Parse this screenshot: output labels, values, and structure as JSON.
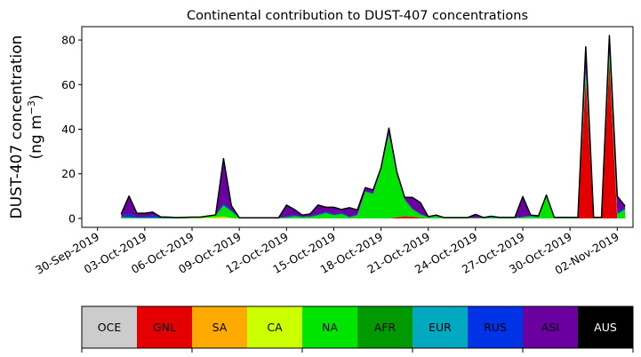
{
  "chart_data": {
    "type": "area",
    "stacked": true,
    "title": "Continental contribution to DUST-407 concentrations",
    "ylabel_line1": "DUST-407 concentration",
    "ylabel_line2_prefix": "(ng m",
    "ylabel_line2_sup": "−3",
    "ylabel_line2_suffix": ")",
    "ylim": [
      -4,
      86
    ],
    "y_ticks": [
      0,
      20,
      40,
      60,
      80
    ],
    "x_ticks": [
      "30-Sep-2019",
      "03-Oct-2019",
      "06-Oct-2019",
      "09-Oct-2019",
      "12-Oct-2019",
      "15-Oct-2019",
      "18-Oct-2019",
      "21-Oct-2019",
      "24-Oct-2019",
      "27-Oct-2019",
      "30-Oct-2019",
      "02-Nov-2019"
    ],
    "x_range": [
      "2019-09-29",
      "2019-11-03"
    ],
    "dates": [
      "2019-10-01T12",
      "2019-10-02T00",
      "2019-10-02T12",
      "2019-10-03T00",
      "2019-10-03T12",
      "2019-10-04T00",
      "2019-10-04T12",
      "2019-10-05T00",
      "2019-10-05T12",
      "2019-10-06T00",
      "2019-10-06T12",
      "2019-10-07T00",
      "2019-10-07T12",
      "2019-10-08T00",
      "2019-10-08T12",
      "2019-10-09T00",
      "2019-10-09T12",
      "2019-10-10T00",
      "2019-10-10T12",
      "2019-10-11T00",
      "2019-10-11T12",
      "2019-10-12T00",
      "2019-10-12T12",
      "2019-10-13T00",
      "2019-10-13T12",
      "2019-10-14T00",
      "2019-10-14T12",
      "2019-10-15T00",
      "2019-10-15T12",
      "2019-10-16T00",
      "2019-10-16T12",
      "2019-10-17T00",
      "2019-10-17T12",
      "2019-10-18T00",
      "2019-10-18T12",
      "2019-10-19T00",
      "2019-10-19T12",
      "2019-10-20T00",
      "2019-10-20T12",
      "2019-10-21T00",
      "2019-10-21T12",
      "2019-10-22T00",
      "2019-10-22T12",
      "2019-10-23T00",
      "2019-10-23T12",
      "2019-10-24T00",
      "2019-10-24T12",
      "2019-10-25T00",
      "2019-10-25T12",
      "2019-10-26T00",
      "2019-10-26T12",
      "2019-10-27T00",
      "2019-10-27T12",
      "2019-10-28T00",
      "2019-10-28T12",
      "2019-10-29T00",
      "2019-10-29T12",
      "2019-10-30T00",
      "2019-10-30T12",
      "2019-10-31T00",
      "2019-10-31T12",
      "2019-11-01T00",
      "2019-11-01T12",
      "2019-11-02T00",
      "2019-11-02T12"
    ],
    "series": [
      {
        "name": "OCE",
        "color": "#cccccc",
        "values": [
          0,
          0,
          0,
          0,
          0,
          0,
          0,
          0,
          0,
          0,
          0,
          0,
          0,
          0,
          0,
          0,
          0,
          0,
          0,
          0,
          0,
          0,
          0,
          0,
          0,
          0,
          0,
          0,
          0,
          0,
          0,
          0,
          0,
          0,
          0,
          0,
          0,
          0,
          0,
          0,
          0,
          0,
          0,
          0,
          0,
          0,
          0,
          0,
          0,
          0,
          0,
          0,
          0,
          0,
          0,
          0,
          0,
          0,
          0,
          0,
          0,
          0,
          0,
          0,
          0
        ]
      },
      {
        "name": "GNL",
        "color": "#e50000",
        "values": [
          0,
          0,
          0,
          0,
          0,
          0,
          0,
          0,
          0,
          0,
          0,
          0,
          0,
          0,
          0,
          0,
          0,
          0,
          0,
          0,
          0,
          0,
          0,
          0,
          0,
          0,
          0,
          0,
          0,
          0,
          0,
          0,
          0,
          0,
          0,
          0.5,
          1,
          0.8,
          0.3,
          0,
          0,
          0,
          0,
          0,
          0,
          0,
          0,
          0,
          0,
          0,
          0,
          0,
          0,
          0,
          0,
          0,
          0,
          0,
          0,
          62,
          0,
          0,
          70,
          0,
          0
        ]
      },
      {
        "name": "SA",
        "color": "#ffaa00",
        "values": [
          0,
          0,
          0,
          0,
          0,
          0,
          0,
          0,
          0,
          0,
          0,
          0.1,
          0.2,
          0.3,
          0,
          0,
          0,
          0,
          0,
          0,
          0,
          0,
          0,
          0,
          0,
          0,
          0,
          0,
          0,
          0,
          0,
          0,
          0,
          0,
          0,
          0,
          0,
          0,
          0,
          0,
          0,
          0,
          0,
          0,
          0,
          0,
          0,
          0,
          0,
          0,
          0,
          0,
          0,
          0,
          0,
          0,
          0,
          0,
          0,
          0,
          0,
          0,
          0,
          0,
          0
        ]
      },
      {
        "name": "CA",
        "color": "#ccff00",
        "values": [
          0,
          0,
          0,
          0,
          0,
          0,
          0,
          0,
          0,
          0.2,
          0.2,
          0.3,
          0.4,
          0.5,
          0.2,
          0,
          0,
          0,
          0,
          0,
          0,
          0,
          0,
          0,
          0,
          0,
          0,
          0,
          0,
          0,
          0,
          0,
          0,
          0,
          0,
          0,
          0,
          0,
          0,
          0,
          0,
          0,
          0,
          0,
          0,
          0,
          0,
          0,
          0,
          0,
          0,
          0,
          0,
          0,
          0,
          0,
          0,
          0,
          0,
          0,
          0,
          0,
          0,
          0,
          0
        ]
      },
      {
        "name": "NA",
        "color": "#00e500",
        "values": [
          0.5,
          0.5,
          0.3,
          0.3,
          0.3,
          0.2,
          0.2,
          0.2,
          0.2,
          0.3,
          0.3,
          0.5,
          0.8,
          5,
          3,
          0.2,
          0.2,
          0.2,
          0.2,
          0.2,
          0.2,
          0.5,
          1,
          0.6,
          0.7,
          1.5,
          2.5,
          1.5,
          2,
          0.5,
          1.5,
          12,
          11,
          22,
          37,
          19,
          7,
          3,
          1.5,
          0.5,
          1,
          0.2,
          0.2,
          0.2,
          0.2,
          0.2,
          0.2,
          0.5,
          0.2,
          0.2,
          0.2,
          0.5,
          1,
          0.5,
          10,
          0.2,
          0.2,
          0.2,
          0.2,
          3,
          0.2,
          0.2,
          4,
          2,
          4
        ]
      },
      {
        "name": "AFR",
        "color": "#009a00",
        "values": [
          0,
          0,
          0,
          0,
          0,
          0,
          0,
          0,
          0,
          0,
          0,
          0,
          0,
          0,
          0,
          0,
          0,
          0,
          0,
          0,
          0,
          0,
          0,
          0,
          0,
          0,
          0,
          0,
          0,
          0,
          0,
          0,
          0,
          0,
          0.5,
          0.5,
          0.5,
          0.3,
          0,
          0,
          0,
          0,
          0,
          0,
          0,
          0,
          0,
          0,
          0,
          0,
          0,
          0,
          0,
          0,
          0,
          0,
          0,
          0,
          0,
          1,
          0,
          0,
          1,
          0,
          0
        ]
      },
      {
        "name": "EUR",
        "color": "#00a8c0",
        "values": [
          0,
          0,
          0,
          0,
          0,
          0,
          0,
          0,
          0,
          0,
          0,
          0,
          0,
          0,
          0,
          0,
          0,
          0,
          0,
          0,
          0,
          0,
          0,
          0,
          0,
          0,
          0,
          0,
          0,
          0,
          0,
          0,
          0,
          0,
          0,
          0,
          0,
          0,
          0,
          0,
          0,
          0,
          0,
          0,
          0,
          0,
          0,
          0,
          0,
          0,
          0,
          0,
          0,
          0,
          0,
          0,
          0,
          0,
          0,
          0,
          0,
          0,
          0,
          0,
          0
        ]
      },
      {
        "name": "RUS",
        "color": "#0033e5",
        "values": [
          0.5,
          1.5,
          0.5,
          0.5,
          1,
          0.3,
          0.2,
          0.2,
          0.2,
          0.1,
          0.1,
          0.2,
          0.2,
          1,
          0.5,
          0.1,
          0.1,
          0.1,
          0.1,
          0.1,
          0.1,
          0.5,
          0.5,
          0.2,
          0.3,
          0.5,
          0.5,
          0.5,
          0.5,
          0.3,
          0.3,
          0.3,
          0.3,
          0.5,
          0.5,
          0.5,
          0.3,
          0.3,
          0.3,
          0.1,
          0.2,
          0.1,
          0.1,
          0.1,
          0.1,
          0.1,
          0.1,
          0.3,
          0.1,
          0.1,
          0.1,
          0.3,
          0.3,
          0.2,
          0.3,
          0.1,
          0.1,
          0.1,
          0.1,
          2,
          0.1,
          0.1,
          2,
          1,
          0.5
        ]
      },
      {
        "name": "ASI",
        "color": "#6a00a0",
        "values": [
          1,
          8,
          1.5,
          1.5,
          1.5,
          0.2,
          0.2,
          0,
          0.1,
          0,
          0,
          0,
          0,
          20,
          2,
          0,
          0,
          0,
          0,
          0,
          0,
          5,
          2.5,
          0.7,
          1,
          4,
          2,
          3,
          1.5,
          4,
          2,
          1.5,
          1.5,
          0.2,
          2.5,
          0.5,
          0.7,
          5,
          5,
          0.2,
          0.3,
          0.1,
          0.1,
          0.1,
          0.1,
          1.5,
          0.1,
          0.2,
          0.2,
          0.2,
          0.2,
          9,
          0.2,
          0.5,
          0.2,
          0.2,
          0.2,
          0.2,
          0.2,
          9,
          0.2,
          0.2,
          5,
          7,
          1
        ]
      },
      {
        "name": "AUS",
        "color": "#000000",
        "values": [
          0,
          0,
          0,
          0,
          0,
          0,
          0,
          0,
          0,
          0,
          0,
          0,
          0,
          0,
          0,
          0,
          0,
          0,
          0,
          0,
          0,
          0,
          0,
          0,
          0,
          0,
          0,
          0,
          0,
          0,
          0,
          0,
          0,
          0,
          0,
          0,
          0,
          0,
          0,
          0,
          0,
          0,
          0,
          0,
          0,
          0,
          0,
          0,
          0,
          0,
          0,
          0,
          0,
          0,
          0,
          0,
          0,
          0,
          0,
          0,
          0,
          0,
          0,
          0,
          0
        ]
      }
    ],
    "legend_placement": "bottom"
  }
}
